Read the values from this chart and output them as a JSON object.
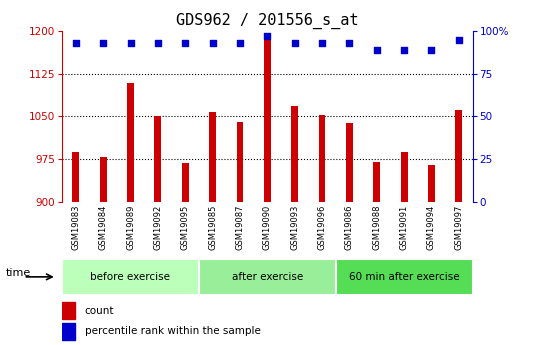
{
  "title": "GDS962 / 201556_s_at",
  "samples": [
    "GSM19083",
    "GSM19084",
    "GSM19089",
    "GSM19092",
    "GSM19095",
    "GSM19085",
    "GSM19087",
    "GSM19090",
    "GSM19093",
    "GSM19096",
    "GSM19086",
    "GSM19088",
    "GSM19091",
    "GSM19094",
    "GSM19097"
  ],
  "counts": [
    987,
    978,
    1108,
    1051,
    968,
    1058,
    1040,
    1185,
    1068,
    1052,
    1038,
    970,
    987,
    965,
    1062
  ],
  "percentile_ranks": [
    93,
    93,
    93,
    93,
    93,
    93,
    93,
    97,
    93,
    93,
    93,
    89,
    89,
    89,
    95
  ],
  "bar_color": "#cc0000",
  "dot_color": "#0000cc",
  "ylim_left": [
    900,
    1200
  ],
  "ylim_right": [
    0,
    100
  ],
  "yticks_left": [
    900,
    975,
    1050,
    1125,
    1200
  ],
  "yticks_right": [
    0,
    25,
    50,
    75,
    100
  ],
  "grid_values": [
    975,
    1050,
    1125
  ],
  "groups": [
    {
      "label": "before exercise",
      "count": 5,
      "color": "#bbffbb"
    },
    {
      "label": "after exercise",
      "count": 5,
      "color": "#99ee99"
    },
    {
      "label": "60 min after exercise",
      "count": 5,
      "color": "#55dd55"
    }
  ],
  "xlabel_time": "time",
  "legend_count": "count",
  "legend_pct": "percentile rank within the sample",
  "plot_bg": "#ffffff",
  "title_fontsize": 11,
  "axis_color_left": "#cc0000",
  "axis_color_right": "#0000cc",
  "bar_width": 0.25,
  "label_bg_color": "#d8d8d8"
}
